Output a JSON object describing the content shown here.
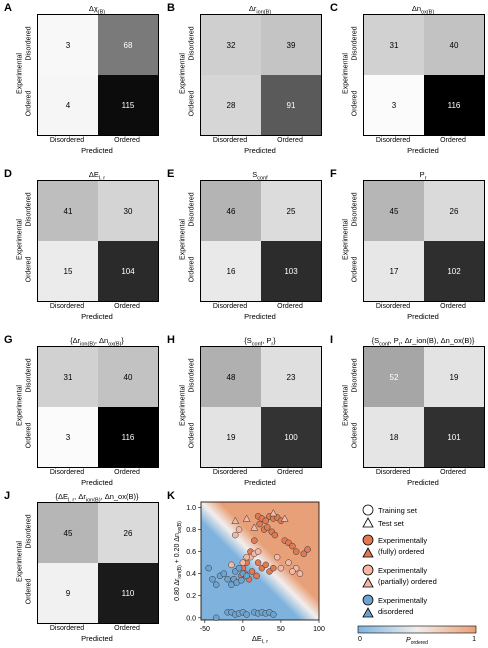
{
  "panels": [
    {
      "label": "A",
      "title": "Δχ",
      "title_sub": "(B)",
      "cells": [
        "3",
        "68",
        "4",
        "115"
      ],
      "shades": [
        "#f8f8f8",
        "#7a7a7a",
        "#f6f6f6",
        "#0c0c0c"
      ],
      "text": [
        "#000",
        "#fff",
        "#000",
        "#fff"
      ]
    },
    {
      "label": "B",
      "title": "Δr",
      "title_sub": "ion(B)",
      "cells": [
        "32",
        "39",
        "28",
        "91"
      ],
      "shades": [
        "#cfcfcf",
        "#c4c4c4",
        "#d6d6d6",
        "#5a5a5a"
      ],
      "text": [
        "#000",
        "#000",
        "#000",
        "#fff"
      ]
    },
    {
      "label": "C",
      "title": "Δn",
      "title_sub": "ox(B)",
      "cells": [
        "31",
        "40",
        "3",
        "116"
      ],
      "shades": [
        "#d1d1d1",
        "#c2c2c2",
        "#fbfbfb",
        "#000000"
      ],
      "text": [
        "#000",
        "#000",
        "#000",
        "#fff"
      ]
    },
    {
      "label": "D",
      "title": "ΔE",
      "title_sub": "l, r",
      "cells": [
        "41",
        "30",
        "15",
        "104"
      ],
      "shades": [
        "#bebebe",
        "#d4d4d4",
        "#ebebeb",
        "#2a2a2a"
      ],
      "text": [
        "#000",
        "#000",
        "#000",
        "#fff"
      ]
    },
    {
      "label": "E",
      "title": "S",
      "title_sub": "conf",
      "cells": [
        "46",
        "25",
        "16",
        "103"
      ],
      "shades": [
        "#b4b4b4",
        "#dcdcdc",
        "#e9e9e9",
        "#2c2c2c"
      ],
      "text": [
        "#000",
        "#000",
        "#000",
        "#fff"
      ]
    },
    {
      "label": "F",
      "title": "P",
      "title_sub": "r",
      "cells": [
        "45",
        "26",
        "17",
        "102"
      ],
      "shades": [
        "#b6b6b6",
        "#dadada",
        "#e7e7e7",
        "#2e2e2e"
      ],
      "text": [
        "#000",
        "#000",
        "#000",
        "#fff"
      ]
    },
    {
      "label": "G",
      "title": "{Δr",
      "title_sub": "ion(B)",
      "title_tail": ", Δn",
      "title_sub2": "ox(B)",
      "title_end": "}",
      "cells": [
        "31",
        "40",
        "3",
        "116"
      ],
      "shades": [
        "#d1d1d1",
        "#c2c2c2",
        "#fbfbfb",
        "#000000"
      ],
      "text": [
        "#000",
        "#000",
        "#000",
        "#fff"
      ]
    },
    {
      "label": "H",
      "title": "{S",
      "title_sub": "conf",
      "title_tail": ", P",
      "title_sub2": "r",
      "title_end": "}",
      "cells": [
        "48",
        "23",
        "19",
        "100"
      ],
      "shades": [
        "#b0b0b0",
        "#dfdfdf",
        "#e3e3e3",
        "#333333"
      ],
      "text": [
        "#000",
        "#000",
        "#000",
        "#fff"
      ]
    },
    {
      "label": "I",
      "title": "{S",
      "title_sub": "conf",
      "title_tail": ", P",
      "title_sub2": "r",
      "title_end": ", Δr_ion(B), Δn_ox(B)}",
      "cells": [
        "52",
        "19",
        "18",
        "101"
      ],
      "shades": [
        "#a6a6a6",
        "#e3e3e3",
        "#e5e5e5",
        "#303030"
      ],
      "text": [
        "#fff",
        "#000",
        "#000",
        "#fff"
      ]
    },
    {
      "label": "J",
      "title": "{ΔE",
      "title_sub": "l, r",
      "title_tail": ", Δr",
      "title_sub2": "ion(B)",
      "title_end": ", Δn_ox(B)}",
      "cells": [
        "45",
        "26",
        "9",
        "110"
      ],
      "shades": [
        "#b6b6b6",
        "#dadada",
        "#f1f1f1",
        "#1a1a1a"
      ],
      "text": [
        "#000",
        "#000",
        "#000",
        "#fff"
      ]
    }
  ],
  "axis": {
    "x_ticks": [
      "Disordered",
      "Ordered"
    ],
    "x_label": "Predicted",
    "y_ticks": [
      "Disordered",
      "Ordered"
    ],
    "y_label": "Experimental"
  },
  "k_panel": {
    "label": "K",
    "xlabel": "ΔE",
    "xlabel_sub": "l, r",
    "ylabel": "0.80 Δr",
    "ylabel_sub": "ion(B)",
    "ylabel_mid": " + 0.20 Δn",
    "ylabel_sub2": "ox(B)",
    "x_ticks": [
      "-50",
      "0",
      "50",
      "100"
    ],
    "y_ticks": [
      "0.0",
      "0.2",
      "0.4",
      "0.6",
      "0.8",
      "1.0"
    ]
  },
  "legend": {
    "training": "Training set",
    "test": "Test set",
    "fully_line1": "Experimentally",
    "fully_line2": "(fully) ordered",
    "partially_line1": "Experimentally",
    "partially_line2": "(partially) ordered",
    "disordered_line1": "Experimentally",
    "disordered_line2": "disordered",
    "cbar_min": "0",
    "cbar_max": "1",
    "cbar_label": "P",
    "cbar_label_sub": "ordered"
  },
  "colors": {
    "fully": "#e07a52",
    "partially": "#f4b8a4",
    "disordered": "#6fa3cf",
    "bg_low": "#7fb3de",
    "bg_high": "#e8a079"
  },
  "chart_data": {
    "type": "scatter",
    "xlim": [
      -55,
      100
    ],
    "ylim": [
      -0.02,
      1.05
    ],
    "series": [
      {
        "name": "Experimentally (fully) ordered",
        "points": [
          [
            20,
            0.92
          ],
          [
            25,
            0.9
          ],
          [
            30,
            0.88
          ],
          [
            35,
            0.92
          ],
          [
            40,
            0.9
          ],
          [
            45,
            0.91
          ],
          [
            50,
            0.88
          ],
          [
            22,
            0.85
          ],
          [
            28,
            0.8
          ],
          [
            32,
            0.82
          ],
          [
            38,
            0.78
          ],
          [
            42,
            0.75
          ],
          [
            55,
            0.7
          ],
          [
            60,
            0.68
          ],
          [
            65,
            0.65
          ],
          [
            70,
            0.6
          ],
          [
            80,
            0.58
          ],
          [
            85,
            0.62
          ],
          [
            15,
            0.7
          ],
          [
            10,
            0.6
          ],
          [
            5,
            0.5
          ],
          [
            0,
            0.45
          ],
          [
            20,
            0.5
          ],
          [
            25,
            0.45
          ],
          [
            30,
            0.48
          ],
          [
            35,
            0.42
          ],
          [
            40,
            0.45
          ],
          [
            12,
            0.42
          ],
          [
            18,
            0.38
          ],
          [
            8,
            0.35
          ],
          [
            3,
            0.4
          ],
          [
            -2,
            0.38
          ]
        ]
      },
      {
        "name": "Experimentally (partially) ordered",
        "points": [
          [
            -10,
            0.75
          ],
          [
            -5,
            0.8
          ],
          [
            10,
            0.55
          ],
          [
            15,
            0.58
          ],
          [
            20,
            0.6
          ],
          [
            45,
            0.55
          ],
          [
            50,
            0.45
          ],
          [
            60,
            0.5
          ],
          [
            70,
            0.45
          ],
          [
            75,
            0.4
          ],
          [
            65,
            0.42
          ],
          [
            -15,
            0.48
          ],
          [
            0,
            0.5
          ],
          [
            5,
            0.55
          ]
        ]
      },
      {
        "name": "Experimentally disordered",
        "points": [
          [
            -45,
            0.45
          ],
          [
            -40,
            0.35
          ],
          [
            -35,
            0.3
          ],
          [
            -30,
            0.38
          ],
          [
            -25,
            0.4
          ],
          [
            -20,
            0.35
          ],
          [
            -15,
            0.3
          ],
          [
            -10,
            0.42
          ],
          [
            -5,
            0.45
          ],
          [
            0,
            0.4
          ],
          [
            -12,
            0.35
          ],
          [
            -8,
            0.32
          ],
          [
            -2,
            0.34
          ],
          [
            5,
            0.38
          ],
          [
            -20,
            0.05
          ],
          [
            -15,
            0.05
          ],
          [
            -10,
            0.03
          ],
          [
            -5,
            0.04
          ],
          [
            0,
            0.05
          ],
          [
            5,
            0.03
          ],
          [
            15,
            0.05
          ],
          [
            20,
            0.04
          ],
          [
            25,
            0.05
          ],
          [
            30,
            0.04
          ],
          [
            35,
            0.05
          ],
          [
            40,
            0.03
          ],
          [
            -35,
            0.0
          ]
        ]
      }
    ],
    "test_points": [
      [
        -10,
        0.88
      ],
      [
        5,
        0.9
      ],
      [
        15,
        0.82
      ],
      [
        40,
        0.95
      ],
      [
        55,
        0.9
      ]
    ]
  }
}
